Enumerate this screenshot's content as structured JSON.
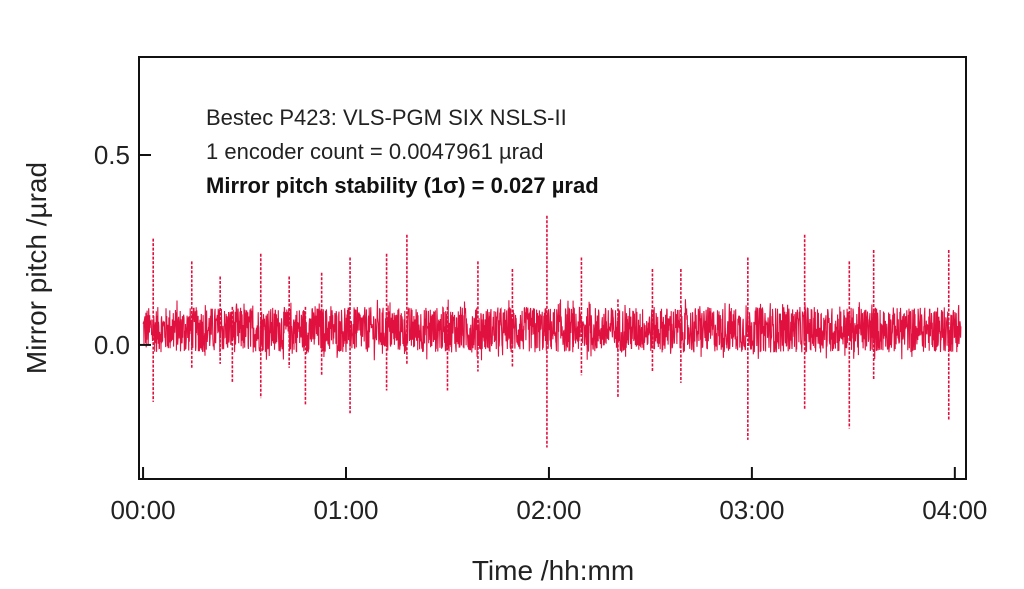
{
  "chart_data": {
    "type": "line",
    "title": "",
    "xlabel": "Time /hh:mm",
    "ylabel": "Mirror pitch /µrad",
    "xlim_hours": [
      -0.02,
      4.055
    ],
    "ylim": [
      -0.353,
      0.758
    ],
    "x_ticks": [
      {
        "value": 0,
        "label": "00:00"
      },
      {
        "value": 1,
        "label": "01:00"
      },
      {
        "value": 2,
        "label": "02:00"
      },
      {
        "value": 3,
        "label": "03:00"
      },
      {
        "value": 4,
        "label": "04:00"
      }
    ],
    "y_ticks": [
      {
        "value": 0.0,
        "label": "0.0"
      },
      {
        "value": 0.5,
        "label": "0.5"
      }
    ],
    "grid": false,
    "annotations": [
      "Bestec P423: VLS-PGM SIX NSLS-II",
      "1 encoder count = 0.0047961 µrad",
      "Mirror pitch stability (1σ) = 0.027 µrad"
    ],
    "series": [
      {
        "name": "Mirror pitch",
        "color": "#e0103f",
        "baseline_mean": 0.04,
        "noise_halfwidth": 0.06,
        "duration_hours": 4.03,
        "spikes": [
          [
            0.05,
            0.28,
            -0.15
          ],
          [
            0.24,
            0.22,
            -0.06
          ],
          [
            0.38,
            0.18,
            -0.05
          ],
          [
            0.44,
            0.1,
            -0.1
          ],
          [
            0.58,
            0.24,
            -0.14
          ],
          [
            0.72,
            0.18,
            -0.06
          ],
          [
            0.8,
            0.1,
            -0.16
          ],
          [
            0.88,
            0.19,
            -0.08
          ],
          [
            1.02,
            0.23,
            -0.18
          ],
          [
            1.2,
            0.24,
            -0.12
          ],
          [
            1.3,
            0.29,
            -0.05
          ],
          [
            1.5,
            0.1,
            -0.12
          ],
          [
            1.65,
            0.22,
            -0.07
          ],
          [
            1.82,
            0.2,
            -0.06
          ],
          [
            1.99,
            0.34,
            -0.27
          ],
          [
            2.16,
            0.23,
            -0.08
          ],
          [
            2.34,
            0.12,
            -0.14
          ],
          [
            2.51,
            0.2,
            -0.07
          ],
          [
            2.65,
            0.2,
            -0.1
          ],
          [
            2.98,
            0.23,
            -0.25
          ],
          [
            3.26,
            0.29,
            -0.17
          ],
          [
            3.48,
            0.22,
            -0.22
          ],
          [
            3.6,
            0.25,
            -0.09
          ],
          [
            3.97,
            0.25,
            -0.2
          ]
        ]
      }
    ]
  }
}
